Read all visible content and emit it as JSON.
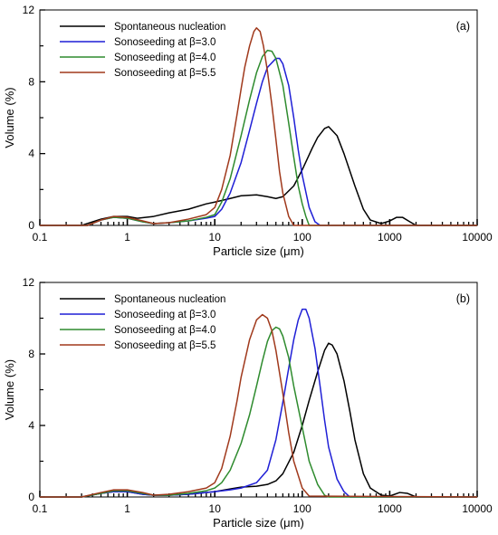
{
  "chart_data": [
    {
      "type": "line",
      "panel_label": "(a)",
      "xscale": "log",
      "xlabel": "Particle size (μm)",
      "ylabel": "Volume (%)",
      "xlim": [
        0.1,
        10000
      ],
      "ylim": [
        0,
        12
      ],
      "xticks": [
        "0.1",
        "1",
        "10",
        "100",
        "1000",
        "10000"
      ],
      "yticks": [
        "0",
        "4",
        "8",
        "12"
      ],
      "legend_position": "top-left",
      "series": [
        {
          "name": "Spontaneous nucleation",
          "color": "#000000",
          "x": [
            0.1,
            0.3,
            0.4,
            0.5,
            0.7,
            1,
            1.3,
            2,
            3,
            5,
            8,
            10,
            15,
            20,
            30,
            40,
            50,
            60,
            80,
            100,
            130,
            150,
            180,
            200,
            250,
            300,
            400,
            500,
            600,
            800,
            1000,
            1200,
            1400,
            1700,
            2000,
            10000
          ],
          "y": [
            0,
            0,
            0.2,
            0.35,
            0.5,
            0.5,
            0.4,
            0.5,
            0.7,
            0.9,
            1.2,
            1.3,
            1.5,
            1.65,
            1.7,
            1.6,
            1.5,
            1.6,
            2.2,
            3.1,
            4.3,
            4.9,
            5.4,
            5.5,
            5.0,
            4.0,
            2.2,
            0.9,
            0.3,
            0.1,
            0.25,
            0.45,
            0.45,
            0.2,
            0,
            0
          ]
        },
        {
          "name": "Sonoseeding at β=3.0",
          "color": "#1f1fd6",
          "x": [
            0.1,
            0.35,
            0.5,
            0.7,
            1,
            1.5,
            2,
            3,
            5,
            8,
            10,
            12,
            15,
            20,
            25,
            30,
            35,
            40,
            50,
            55,
            60,
            70,
            80,
            90,
            100,
            120,
            140,
            160,
            10000
          ],
          "y": [
            0,
            0,
            0.3,
            0.45,
            0.4,
            0.2,
            0.1,
            0.15,
            0.25,
            0.4,
            0.5,
            0.9,
            1.8,
            3.5,
            5.3,
            6.8,
            8.0,
            8.8,
            9.3,
            9.3,
            9.0,
            7.8,
            6.0,
            4.2,
            2.8,
            1.0,
            0.2,
            0,
            0
          ]
        },
        {
          "name": "Sonoseeding at β=4.0",
          "color": "#2e8b2e",
          "x": [
            0.1,
            0.35,
            0.5,
            0.7,
            1,
            1.5,
            2,
            3,
            5,
            8,
            10,
            12,
            15,
            20,
            25,
            30,
            35,
            40,
            45,
            50,
            60,
            70,
            80,
            90,
            100,
            110,
            120,
            10000
          ],
          "y": [
            0,
            0,
            0.3,
            0.45,
            0.4,
            0.2,
            0.1,
            0.15,
            0.25,
            0.45,
            0.6,
            1.3,
            2.6,
            5.0,
            7.0,
            8.5,
            9.4,
            9.75,
            9.7,
            9.3,
            7.8,
            5.7,
            3.8,
            2.2,
            1.2,
            0.5,
            0,
            0
          ]
        },
        {
          "name": "Sonoseeding at β=5.5",
          "color": "#a0391c",
          "x": [
            0.1,
            0.35,
            0.5,
            0.7,
            1,
            1.5,
            2,
            3,
            5,
            8,
            10,
            12,
            15,
            18,
            20,
            22,
            25,
            28,
            30,
            33,
            36,
            40,
            45,
            50,
            55,
            60,
            70,
            80,
            10000
          ],
          "y": [
            0,
            0,
            0.3,
            0.5,
            0.45,
            0.25,
            0.1,
            0.15,
            0.35,
            0.6,
            1.0,
            2.0,
            3.9,
            6.2,
            7.6,
            8.8,
            10.0,
            10.8,
            11.0,
            10.8,
            10.0,
            8.6,
            6.7,
            4.8,
            3.0,
            1.8,
            0.5,
            0,
            0
          ]
        }
      ]
    },
    {
      "type": "line",
      "panel_label": "(b)",
      "xscale": "log",
      "xlabel": "Particle size (μm)",
      "ylabel": "Volume (%)",
      "xlim": [
        0.1,
        10000
      ],
      "ylim": [
        0,
        12
      ],
      "xticks": [
        "0.1",
        "1",
        "10",
        "100",
        "1000",
        "10000"
      ],
      "yticks": [
        "0",
        "4",
        "8",
        "12"
      ],
      "legend_position": "top-left",
      "series": [
        {
          "name": "Spontaneous nucleation",
          "color": "#000000",
          "x": [
            0.1,
            0.3,
            0.5,
            0.7,
            1,
            1.5,
            2,
            3,
            5,
            10,
            15,
            20,
            30,
            40,
            50,
            60,
            80,
            100,
            120,
            150,
            180,
            200,
            220,
            250,
            300,
            350,
            400,
            500,
            600,
            800,
            1000,
            1300,
            1600,
            2000,
            10000
          ],
          "y": [
            0,
            0,
            0.2,
            0.3,
            0.3,
            0.15,
            0.1,
            0.1,
            0.15,
            0.3,
            0.45,
            0.55,
            0.6,
            0.7,
            0.9,
            1.3,
            2.5,
            4.0,
            5.4,
            7.0,
            8.2,
            8.6,
            8.5,
            8.0,
            6.5,
            4.8,
            3.2,
            1.3,
            0.5,
            0.1,
            0.05,
            0.25,
            0.2,
            0,
            0
          ]
        },
        {
          "name": "Sonoseeding at β=3.0",
          "color": "#1f1fd6",
          "x": [
            0.1,
            0.3,
            0.5,
            0.7,
            1,
            1.5,
            2,
            3,
            5,
            10,
            15,
            20,
            30,
            40,
            50,
            60,
            70,
            80,
            90,
            100,
            110,
            120,
            140,
            160,
            180,
            200,
            250,
            300,
            350,
            10000
          ],
          "y": [
            0,
            0,
            0.2,
            0.3,
            0.3,
            0.15,
            0.1,
            0.1,
            0.15,
            0.3,
            0.4,
            0.5,
            0.8,
            1.5,
            3.2,
            5.3,
            7.2,
            8.8,
            9.9,
            10.5,
            10.5,
            10.0,
            8.3,
            6.2,
            4.3,
            2.8,
            1.0,
            0.3,
            0,
            0
          ]
        },
        {
          "name": "Sonoseeding at β=4.0",
          "color": "#2e8b2e",
          "x": [
            0.1,
            0.3,
            0.5,
            0.7,
            1,
            1.5,
            2,
            3,
            5,
            8,
            10,
            12,
            15,
            20,
            25,
            30,
            35,
            40,
            45,
            50,
            55,
            60,
            70,
            80,
            100,
            120,
            150,
            180,
            200,
            10000
          ],
          "y": [
            0,
            0,
            0.2,
            0.35,
            0.35,
            0.2,
            0.1,
            0.1,
            0.2,
            0.35,
            0.5,
            0.8,
            1.5,
            3.0,
            4.6,
            6.2,
            7.6,
            8.7,
            9.3,
            9.5,
            9.4,
            9.0,
            7.8,
            6.2,
            3.9,
            2.0,
            0.7,
            0.1,
            0,
            0
          ]
        },
        {
          "name": "Sonoseeding at β=5.5",
          "color": "#a0391c",
          "x": [
            0.1,
            0.3,
            0.5,
            0.7,
            1,
            1.5,
            2,
            3,
            5,
            8,
            10,
            12,
            15,
            18,
            20,
            25,
            30,
            35,
            40,
            45,
            50,
            60,
            70,
            80,
            100,
            120,
            10000
          ],
          "y": [
            0,
            0,
            0.25,
            0.4,
            0.4,
            0.25,
            0.1,
            0.15,
            0.3,
            0.5,
            0.8,
            1.6,
            3.4,
            5.4,
            6.7,
            8.8,
            9.9,
            10.2,
            10.0,
            9.3,
            8.2,
            5.8,
            3.6,
            2.0,
            0.5,
            0.05,
            0
          ]
        }
      ]
    }
  ]
}
